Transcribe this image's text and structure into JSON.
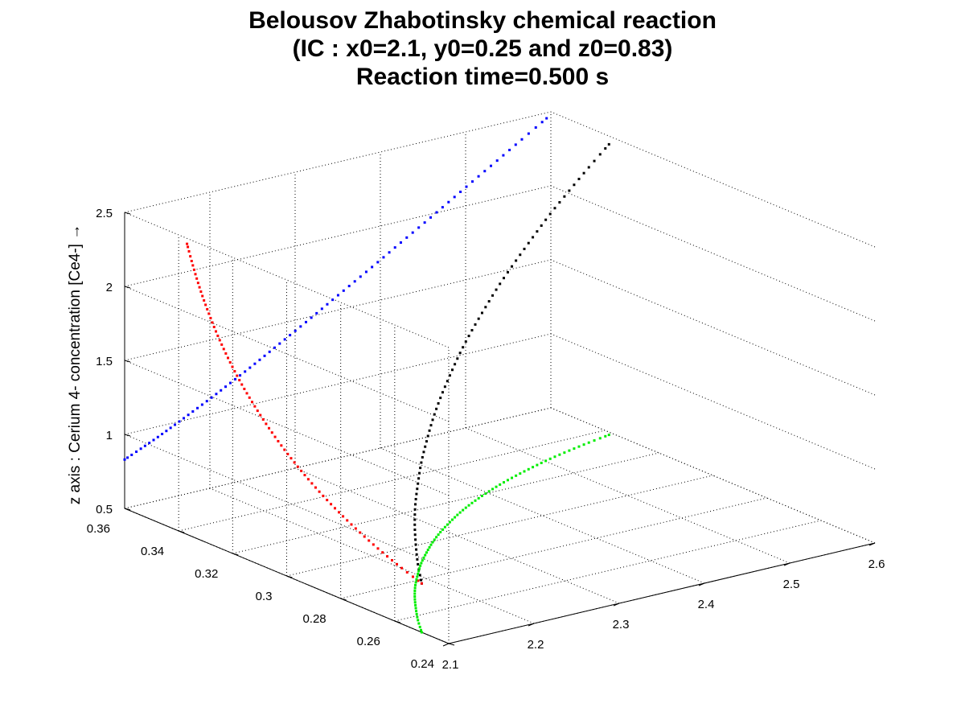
{
  "chart_data": {
    "type": "scatter",
    "projection": "3d",
    "title_lines": [
      "Belousov Zhabotinsky chemical reaction",
      "(IC : x0=2.1, y0=0.25 and z0=0.83)",
      "Reaction time=0.500 s"
    ],
    "xlabel": "",
    "ylabel": "",
    "zlabel": "z axis : Cerium 4- concentration [Ce4-] →",
    "grid": true,
    "xlim": [
      2.1,
      2.6
    ],
    "ylim": [
      0.24,
      0.36
    ],
    "zlim": [
      0.5,
      2.5
    ],
    "x_ticks": [
      "2.1",
      "2.2",
      "2.3",
      "2.4",
      "2.5",
      "2.6"
    ],
    "y_ticks": [
      "0.24",
      "0.26",
      "0.28",
      "0.3",
      "0.32",
      "0.34",
      "0.36"
    ],
    "z_ticks": [
      "0.5",
      "1",
      "1.5",
      "2",
      "2.5"
    ],
    "series": [
      {
        "color": "#000000",
        "points": [
          [
            2.1,
            0.25,
            0.83
          ],
          [
            2.119,
            0.2574,
            0.8775
          ],
          [
            2.139,
            0.2645,
            0.9293
          ],
          [
            2.159,
            0.2712,
            0.9853
          ],
          [
            2.18,
            0.2776,
            1.046
          ],
          [
            2.202,
            0.2836,
            1.11
          ],
          [
            2.224,
            0.2893,
            1.179
          ],
          [
            2.247,
            0.2946,
            1.251
          ],
          [
            2.27,
            0.2996,
            1.327
          ],
          [
            2.294,
            0.3043,
            1.407
          ],
          [
            2.319,
            0.3087,
            1.491
          ],
          [
            2.344,
            0.3128,
            1.578
          ],
          [
            2.37,
            0.3166,
            1.667
          ],
          [
            2.397,
            0.3201,
            1.76
          ],
          [
            2.424,
            0.3233,
            1.856
          ],
          [
            2.452,
            0.3262,
            1.953
          ],
          [
            2.48,
            0.3288,
            2.053
          ],
          [
            2.508,
            0.3312,
            2.154
          ],
          [
            2.537,
            0.3333,
            2.256
          ],
          [
            2.566,
            0.3352,
            2.36
          ],
          [
            2.595,
            0.3369,
            2.463
          ]
        ]
      },
      {
        "color": "#ff0000",
        "projection": "x=2.1",
        "points": [
          [
            2.1,
            0.25,
            0.83
          ],
          [
            2.1,
            0.2574,
            0.8775
          ],
          [
            2.1,
            0.2645,
            0.9293
          ],
          [
            2.1,
            0.2712,
            0.9853
          ],
          [
            2.1,
            0.2776,
            1.046
          ],
          [
            2.1,
            0.2836,
            1.11
          ],
          [
            2.1,
            0.2893,
            1.179
          ],
          [
            2.1,
            0.2946,
            1.251
          ],
          [
            2.1,
            0.2996,
            1.327
          ],
          [
            2.1,
            0.3043,
            1.407
          ],
          [
            2.1,
            0.3087,
            1.491
          ],
          [
            2.1,
            0.3128,
            1.578
          ],
          [
            2.1,
            0.3166,
            1.667
          ],
          [
            2.1,
            0.3201,
            1.76
          ],
          [
            2.1,
            0.3233,
            1.856
          ],
          [
            2.1,
            0.3262,
            1.953
          ],
          [
            2.1,
            0.3288,
            2.053
          ],
          [
            2.1,
            0.3312,
            2.154
          ],
          [
            2.1,
            0.3333,
            2.256
          ],
          [
            2.1,
            0.3352,
            2.36
          ],
          [
            2.1,
            0.3369,
            2.463
          ]
        ]
      },
      {
        "color": "#0000ff",
        "projection": "y=0.36",
        "points": [
          [
            2.1,
            0.36,
            0.83
          ],
          [
            2.119,
            0.36,
            0.8775
          ],
          [
            2.139,
            0.36,
            0.9293
          ],
          [
            2.159,
            0.36,
            0.9853
          ],
          [
            2.18,
            0.36,
            1.046
          ],
          [
            2.202,
            0.36,
            1.11
          ],
          [
            2.224,
            0.36,
            1.179
          ],
          [
            2.247,
            0.36,
            1.251
          ],
          [
            2.27,
            0.36,
            1.327
          ],
          [
            2.294,
            0.36,
            1.407
          ],
          [
            2.319,
            0.36,
            1.491
          ],
          [
            2.344,
            0.36,
            1.578
          ],
          [
            2.37,
            0.36,
            1.667
          ],
          [
            2.397,
            0.36,
            1.76
          ],
          [
            2.424,
            0.36,
            1.856
          ],
          [
            2.452,
            0.36,
            1.953
          ],
          [
            2.48,
            0.36,
            2.053
          ],
          [
            2.508,
            0.36,
            2.154
          ],
          [
            2.537,
            0.36,
            2.256
          ],
          [
            2.566,
            0.36,
            2.36
          ],
          [
            2.595,
            0.36,
            2.463
          ]
        ]
      },
      {
        "color": "#00ee00",
        "projection": "z=0.5",
        "points": [
          [
            2.1,
            0.25,
            0.5
          ],
          [
            2.119,
            0.2574,
            0.5
          ],
          [
            2.139,
            0.2645,
            0.5
          ],
          [
            2.159,
            0.2712,
            0.5
          ],
          [
            2.18,
            0.2776,
            0.5
          ],
          [
            2.202,
            0.2836,
            0.5
          ],
          [
            2.224,
            0.2893,
            0.5
          ],
          [
            2.247,
            0.2946,
            0.5
          ],
          [
            2.27,
            0.2996,
            0.5
          ],
          [
            2.294,
            0.3043,
            0.5
          ],
          [
            2.319,
            0.3087,
            0.5
          ],
          [
            2.344,
            0.3128,
            0.5
          ],
          [
            2.37,
            0.3166,
            0.5
          ],
          [
            2.397,
            0.3201,
            0.5
          ],
          [
            2.424,
            0.3233,
            0.5
          ],
          [
            2.452,
            0.3262,
            0.5
          ],
          [
            2.48,
            0.3288,
            0.5
          ],
          [
            2.508,
            0.3312,
            0.5
          ],
          [
            2.537,
            0.3333,
            0.5
          ],
          [
            2.566,
            0.3352,
            0.5
          ],
          [
            2.595,
            0.3369,
            0.5
          ]
        ]
      }
    ]
  }
}
